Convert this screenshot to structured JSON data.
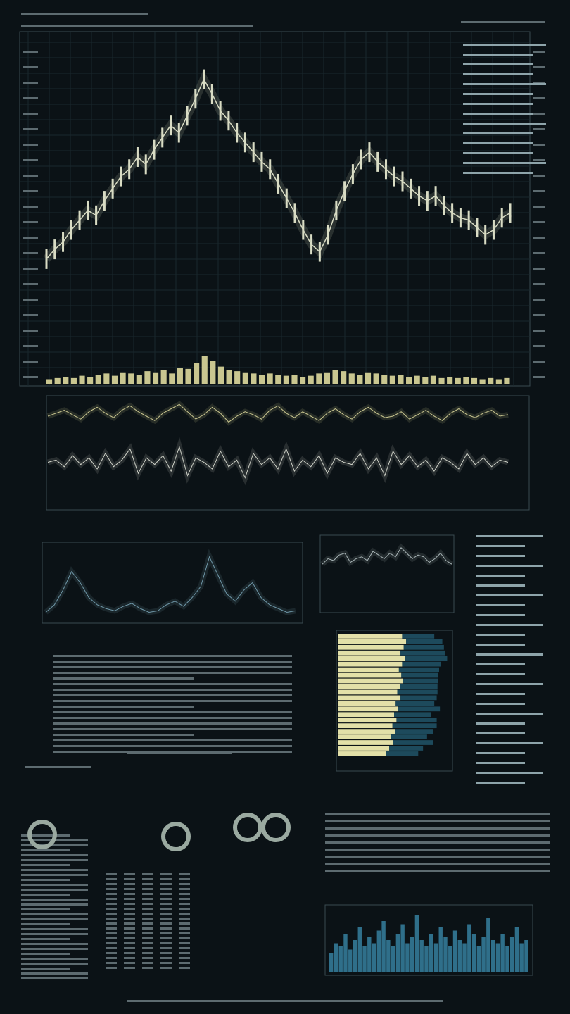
{
  "price": {
    "color": "#d9dcc4",
    "ylim": [
      0,
      100
    ],
    "values": [
      18,
      22,
      25,
      30,
      34,
      38,
      36,
      42,
      47,
      52,
      55,
      60,
      57,
      63,
      68,
      73,
      70,
      77,
      84,
      92,
      86,
      79,
      75,
      70,
      66,
      62,
      58,
      55,
      49,
      43,
      37,
      30,
      24,
      21,
      28,
      38,
      46,
      53,
      59,
      62,
      58,
      55,
      52,
      50,
      47,
      44,
      42,
      44,
      40,
      37,
      35,
      34,
      31,
      28,
      30,
      35,
      37
    ]
  },
  "volume": {
    "color": "#c9c690",
    "ylim": [
      0,
      40
    ],
    "values": [
      4,
      5,
      6,
      5,
      7,
      6,
      8,
      9,
      7,
      10,
      9,
      8,
      11,
      10,
      12,
      9,
      14,
      13,
      18,
      24,
      20,
      15,
      12,
      11,
      10,
      9,
      8,
      9,
      8,
      7,
      8,
      6,
      7,
      9,
      10,
      12,
      11,
      9,
      8,
      10,
      9,
      8,
      7,
      8,
      6,
      7,
      6,
      7,
      5,
      6,
      5,
      6,
      5,
      4,
      5,
      4,
      5
    ]
  },
  "oscillator_a": {
    "color": "#c9c690",
    "ylim": [
      -10,
      10
    ],
    "values": [
      0,
      2,
      4,
      1,
      -2,
      3,
      6,
      2,
      -1,
      4,
      7,
      3,
      0,
      -3,
      2,
      5,
      8,
      3,
      -2,
      1,
      6,
      2,
      -4,
      0,
      3,
      1,
      -2,
      4,
      7,
      2,
      -1,
      3,
      0,
      -3,
      2,
      5,
      1,
      -2,
      3,
      6,
      2,
      -1,
      0,
      3,
      -2,
      1,
      4,
      0,
      -3,
      2,
      5,
      1,
      -1,
      2,
      4,
      0,
      1
    ]
  },
  "oscillator_b": {
    "color": "#cfd2c8",
    "ylim": [
      -10,
      10
    ],
    "values": [
      0,
      1,
      -2,
      3,
      -1,
      2,
      -3,
      4,
      -2,
      1,
      6,
      -5,
      2,
      -1,
      3,
      -4,
      7,
      -6,
      2,
      0,
      -3,
      5,
      -2,
      1,
      -7,
      4,
      -1,
      2,
      -3,
      6,
      -4,
      1,
      -2,
      3,
      -5,
      2,
      0,
      -1,
      4,
      -3,
      2,
      -6,
      5,
      -1,
      3,
      -2,
      1,
      -4,
      2,
      0,
      -3,
      4,
      -1,
      2,
      -2,
      1,
      0
    ]
  },
  "mid_left": {
    "color": "#6f97a8",
    "ylim": [
      0,
      100
    ],
    "values": [
      10,
      20,
      40,
      65,
      50,
      30,
      20,
      15,
      12,
      18,
      22,
      15,
      10,
      12,
      20,
      25,
      18,
      30,
      45,
      85,
      60,
      35,
      25,
      40,
      50,
      30,
      20,
      15,
      10,
      12
    ]
  },
  "mid_right": {
    "color": "#aab6b8",
    "ylim": [
      0,
      100
    ],
    "values": [
      40,
      55,
      50,
      65,
      70,
      45,
      55,
      60,
      50,
      75,
      65,
      55,
      70,
      60,
      85,
      70,
      55,
      65,
      60,
      45,
      55,
      70,
      50,
      40
    ]
  },
  "hbars": {
    "series": [
      {
        "color": "#e3e0a8",
        "values": [
          80,
          85,
          82,
          78,
          84,
          80,
          76,
          79,
          81,
          77,
          74,
          78,
          72,
          75,
          70,
          73,
          68,
          71,
          66,
          69,
          64,
          60
        ]
      },
      {
        "color": "#1d4a5c",
        "values": [
          40,
          45,
          50,
          55,
          52,
          48,
          50,
          46,
          44,
          47,
          50,
          45,
          48,
          52,
          46,
          50,
          55,
          48,
          45,
          50,
          42,
          40
        ]
      }
    ],
    "xlim": [
      0,
      140
    ]
  },
  "histogram": {
    "color": "#2f6f8a",
    "ylim": [
      0,
      100
    ],
    "values": [
      30,
      45,
      40,
      60,
      35,
      50,
      70,
      40,
      55,
      45,
      65,
      80,
      50,
      40,
      60,
      75,
      45,
      55,
      90,
      50,
      40,
      60,
      45,
      70,
      55,
      40,
      65,
      50,
      45,
      75,
      60,
      40,
      55,
      85,
      50,
      45,
      60,
      40,
      55,
      70,
      45,
      50
    ]
  }
}
